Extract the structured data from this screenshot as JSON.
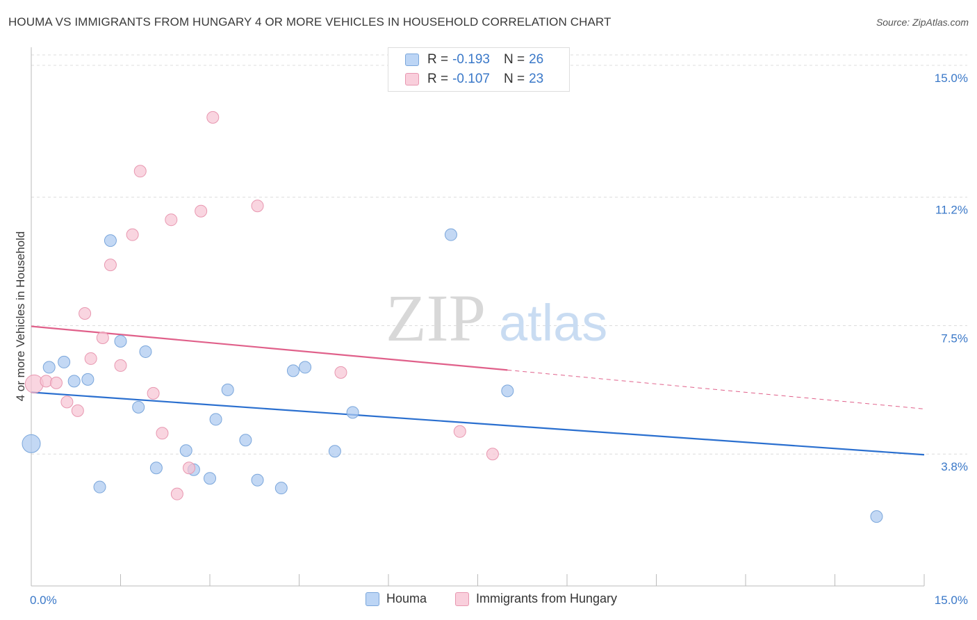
{
  "title": "HOUMA VS IMMIGRANTS FROM HUNGARY 4 OR MORE VEHICLES IN HOUSEHOLD CORRELATION CHART",
  "source": "Source: ZipAtlas.com",
  "watermark": {
    "zip": "ZIP",
    "atlas": "atlas"
  },
  "legend_top": {
    "rows": [
      {
        "r_label": "R =",
        "r_value": "-0.193",
        "n_label": "N =",
        "n_value": "26"
      },
      {
        "r_label": "R =",
        "r_value": "-0.107",
        "n_label": "N =",
        "n_value": "23"
      }
    ]
  },
  "chart_data": {
    "type": "scatter",
    "title": "HOUMA VS IMMIGRANTS FROM HUNGARY 4 OR MORE VEHICLES IN HOUSEHOLD CORRELATION CHART",
    "xlabel": "",
    "ylabel": "4 or more Vehicles in Household",
    "xlim": [
      0,
      15
    ],
    "ylim": [
      0,
      15.3
    ],
    "x_tick_labels": [
      "0.0%",
      "15.0%"
    ],
    "y_ticks": [
      3.8,
      7.5,
      11.2,
      15.0
    ],
    "y_tick_labels": [
      "3.8%",
      "7.5%",
      "11.2%",
      "15.0%"
    ],
    "grid": true,
    "legend_placement": "bottom",
    "series": [
      {
        "name": "Houma",
        "color": "#a9c8f0",
        "edge": "#7aa6db",
        "line_color": "#2a6fcf",
        "trend": {
          "x": [
            0,
            15
          ],
          "y": [
            5.58,
            3.78
          ]
        },
        "points": [
          {
            "x": 0.0,
            "y": 4.1,
            "big": true
          },
          {
            "x": 0.3,
            "y": 6.3
          },
          {
            "x": 0.55,
            "y": 6.45
          },
          {
            "x": 0.72,
            "y": 5.9
          },
          {
            "x": 0.95,
            "y": 5.95
          },
          {
            "x": 1.15,
            "y": 2.85
          },
          {
            "x": 1.33,
            "y": 9.95
          },
          {
            "x": 1.5,
            "y": 7.05
          },
          {
            "x": 1.8,
            "y": 5.15
          },
          {
            "x": 1.92,
            "y": 6.75
          },
          {
            "x": 2.1,
            "y": 3.4
          },
          {
            "x": 2.6,
            "y": 3.9
          },
          {
            "x": 2.73,
            "y": 3.35
          },
          {
            "x": 3.0,
            "y": 3.1
          },
          {
            "x": 3.1,
            "y": 4.8
          },
          {
            "x": 3.3,
            "y": 5.65
          },
          {
            "x": 3.6,
            "y": 4.2
          },
          {
            "x": 3.8,
            "y": 3.05
          },
          {
            "x": 4.2,
            "y": 2.82
          },
          {
            "x": 4.4,
            "y": 6.2
          },
          {
            "x": 4.6,
            "y": 6.3
          },
          {
            "x": 5.1,
            "y": 3.88
          },
          {
            "x": 5.4,
            "y": 5.0
          },
          {
            "x": 7.05,
            "y": 10.12
          },
          {
            "x": 8.0,
            "y": 5.62
          },
          {
            "x": 14.2,
            "y": 2.0
          }
        ]
      },
      {
        "name": "Immigrants from Hungary",
        "color": "#f7c3d3",
        "edge": "#e897b0",
        "line_color": "#e0608a",
        "trend": {
          "x": [
            0,
            8.0
          ],
          "y": [
            7.48,
            6.22
          ]
        },
        "trend_dashed": {
          "x": [
            8.0,
            15
          ],
          "y": [
            6.22,
            5.1
          ]
        },
        "points": [
          {
            "x": 0.05,
            "y": 5.82,
            "big": true
          },
          {
            "x": 0.25,
            "y": 5.9
          },
          {
            "x": 0.42,
            "y": 5.85
          },
          {
            "x": 0.6,
            "y": 5.3
          },
          {
            "x": 0.78,
            "y": 5.05
          },
          {
            "x": 0.9,
            "y": 7.85
          },
          {
            "x": 1.0,
            "y": 6.55
          },
          {
            "x": 1.2,
            "y": 7.15
          },
          {
            "x": 1.33,
            "y": 9.25
          },
          {
            "x": 1.5,
            "y": 6.35
          },
          {
            "x": 1.7,
            "y": 10.12
          },
          {
            "x": 1.83,
            "y": 11.95
          },
          {
            "x": 2.05,
            "y": 5.55
          },
          {
            "x": 2.2,
            "y": 4.4
          },
          {
            "x": 2.45,
            "y": 2.65
          },
          {
            "x": 2.35,
            "y": 10.55
          },
          {
            "x": 2.65,
            "y": 3.4
          },
          {
            "x": 2.85,
            "y": 10.8
          },
          {
            "x": 3.05,
            "y": 13.5
          },
          {
            "x": 3.8,
            "y": 10.95
          },
          {
            "x": 5.2,
            "y": 6.15
          },
          {
            "x": 7.2,
            "y": 4.45
          },
          {
            "x": 7.75,
            "y": 3.8
          }
        ]
      }
    ]
  }
}
